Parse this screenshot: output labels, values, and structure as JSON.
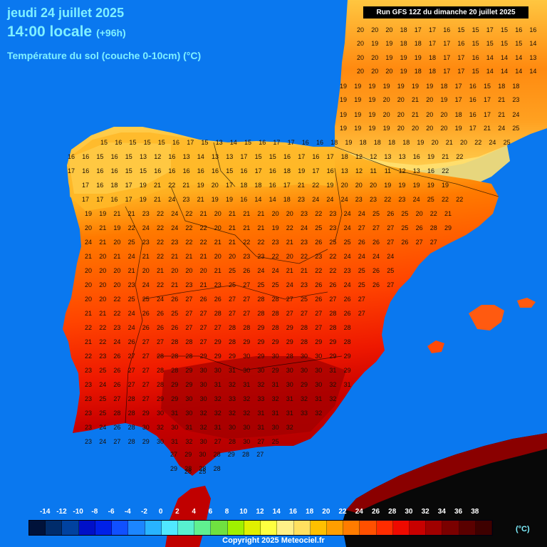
{
  "header": {
    "date": "jeudi 24 juillet 2025",
    "time": "14:00 locale",
    "offset": "(+96h)",
    "parameter": "Température du sol (couche 0-10cm) (°C)"
  },
  "run_banner": "Run GFS 12Z du dimanche 20 juillet 2025",
  "legend": {
    "labels": [
      "-14",
      "-12",
      "-10",
      "-8",
      "-6",
      "-4",
      "-2",
      "0",
      "2",
      "4",
      "6",
      "8",
      "10",
      "12",
      "14",
      "16",
      "18",
      "20",
      "22",
      "24",
      "26",
      "28",
      "30",
      "32",
      "34",
      "36",
      "38"
    ],
    "colors": [
      "#00123a",
      "#002c6b",
      "#0042a0",
      "#0010c8",
      "#0020e8",
      "#1050ff",
      "#1c86ff",
      "#28b4ff",
      "#50e8ff",
      "#58f0d0",
      "#60f090",
      "#70e040",
      "#a0f000",
      "#e0f000",
      "#ffff40",
      "#fff088",
      "#ffe060",
      "#ffc000",
      "#ff9e00",
      "#ff7c00",
      "#ff5000",
      "#ff2c00",
      "#ee0a00",
      "#c80000",
      "#a00000",
      "#7a0000",
      "#5a0000",
      "#3e0000"
    ],
    "unit": "(°C)"
  },
  "copyright": "Copyright 2025 Meteociel.fr",
  "colors": {
    "sea": "#0a78ef",
    "africa": "#080808",
    "title": "#7ff0ff"
  },
  "temperature_grid": {
    "rows": [
      "20 20 20 18 17 17 16 15 15 17 15 16 16",
      "20 19 19 18 18 17 17 16 15 15 15 15 14",
      "20 20 19 19 19 18 17 17 16 14 14 14 13",
      "20 20 20 19 18 18 17 17 15 14 14 14 14",
      "19 19 19 19 19 19 19 18 17 16 15 18 18",
      "19 19 19 20 20 21 20 19 17 16 17 21 23",
      "19 19 19 20 20 21 20 20 18 16 17 21 24",
      "19 19 19 19 20 20 20 20 19 17 21 24 25",
      "15 16 15 15 15 16 17 15 13 14 15 16 17 17 16 16 18 19 18 18 18 18 19 20 21 20 22 24 25",
      "16 16 15 16 15 13 12 16 13 14 13 13 17 15 15 16 17 16 17 18 12 12 13 13 16 19 21 22",
      "17 16 16 16 15 15 16 16 16 16 16 15 16 17 16 18 19 17 16 13 12 11 11 12 13 16 22",
      "17 16 18 17 19 21 22 21 19 20 17 18 18 16 17 21 22 19 20 20 20 19 19 19 19 19",
      "17 17 16 17 19 21 24 23 21 19 19 16 14 14 18 23 24 24 24 23 23 22 23 24 25 22 22",
      "19 19 21 21 23 22 24 22 21 20 21 21 21 20 20 23 22 23 24 24 25 26 25 20 22 21",
      "20 21 19 22 24 22 24 22 22 20 21 21 21 19 22 24 25 23 24 27 27 27 25 26 28 29",
      "24 21 20 25 23 22 23 22 22 21 21 22 22 23 21 23 26 25 25 26 26 27 26 27 27",
      "21 20 21 24 21 22 21 21 21 20 20 23 23 22 20 22 23 22 24 24 24 24",
      "20 20 20 21 20 21 20 20 20 21 25 26 24 24 21 21 22 22 23 25 26 25",
      "20 20 20 23 24 22 21 23 21 23 25 27 25 25 24 23 26 26 24 25 26 27",
      "20 20 22 25 25 24 26 27 26 26 27 27 28 28 27 25 26 27 26 27",
      "21 21 22 24 26 26 25 27 27 28 27 27 28 28 27 27 27 28 26 27",
      "22 22 23 24 26 26 26 27 27 27 28 28 29 28 29 28 27 28 28",
      "21 22 24 26 27 27 28 28 27 29 28 29 29 29 29 28 29 29 28",
      "22 23 26 27 27 28 28 28 29 29 29 30 29 30 28 30 30 29 29",
      "23 25 26 27 27 28 28 29 30 30 31 30 30 29 30 30 30 31 29",
      "23 24 26 27 27 28 29 29 30 31 32 31 32 31 30 29 30 32 31",
      "23 25 27 28 27 29 29 30 30 32 33 32 33 32 31 32 31 32",
      "23 25 28 28 29 30 31 30 32 32 32 32 31 31 31 33 32",
      "23 24 26 28 30 32 30 31 32 31 30 30 31 30 32",
      "23 24 27 28 29 30 31 32 30 27 28 30 27 25",
      "27 29 30 28 29 28 27",
      "29 28 28 28",
      "28 25"
    ]
  }
}
